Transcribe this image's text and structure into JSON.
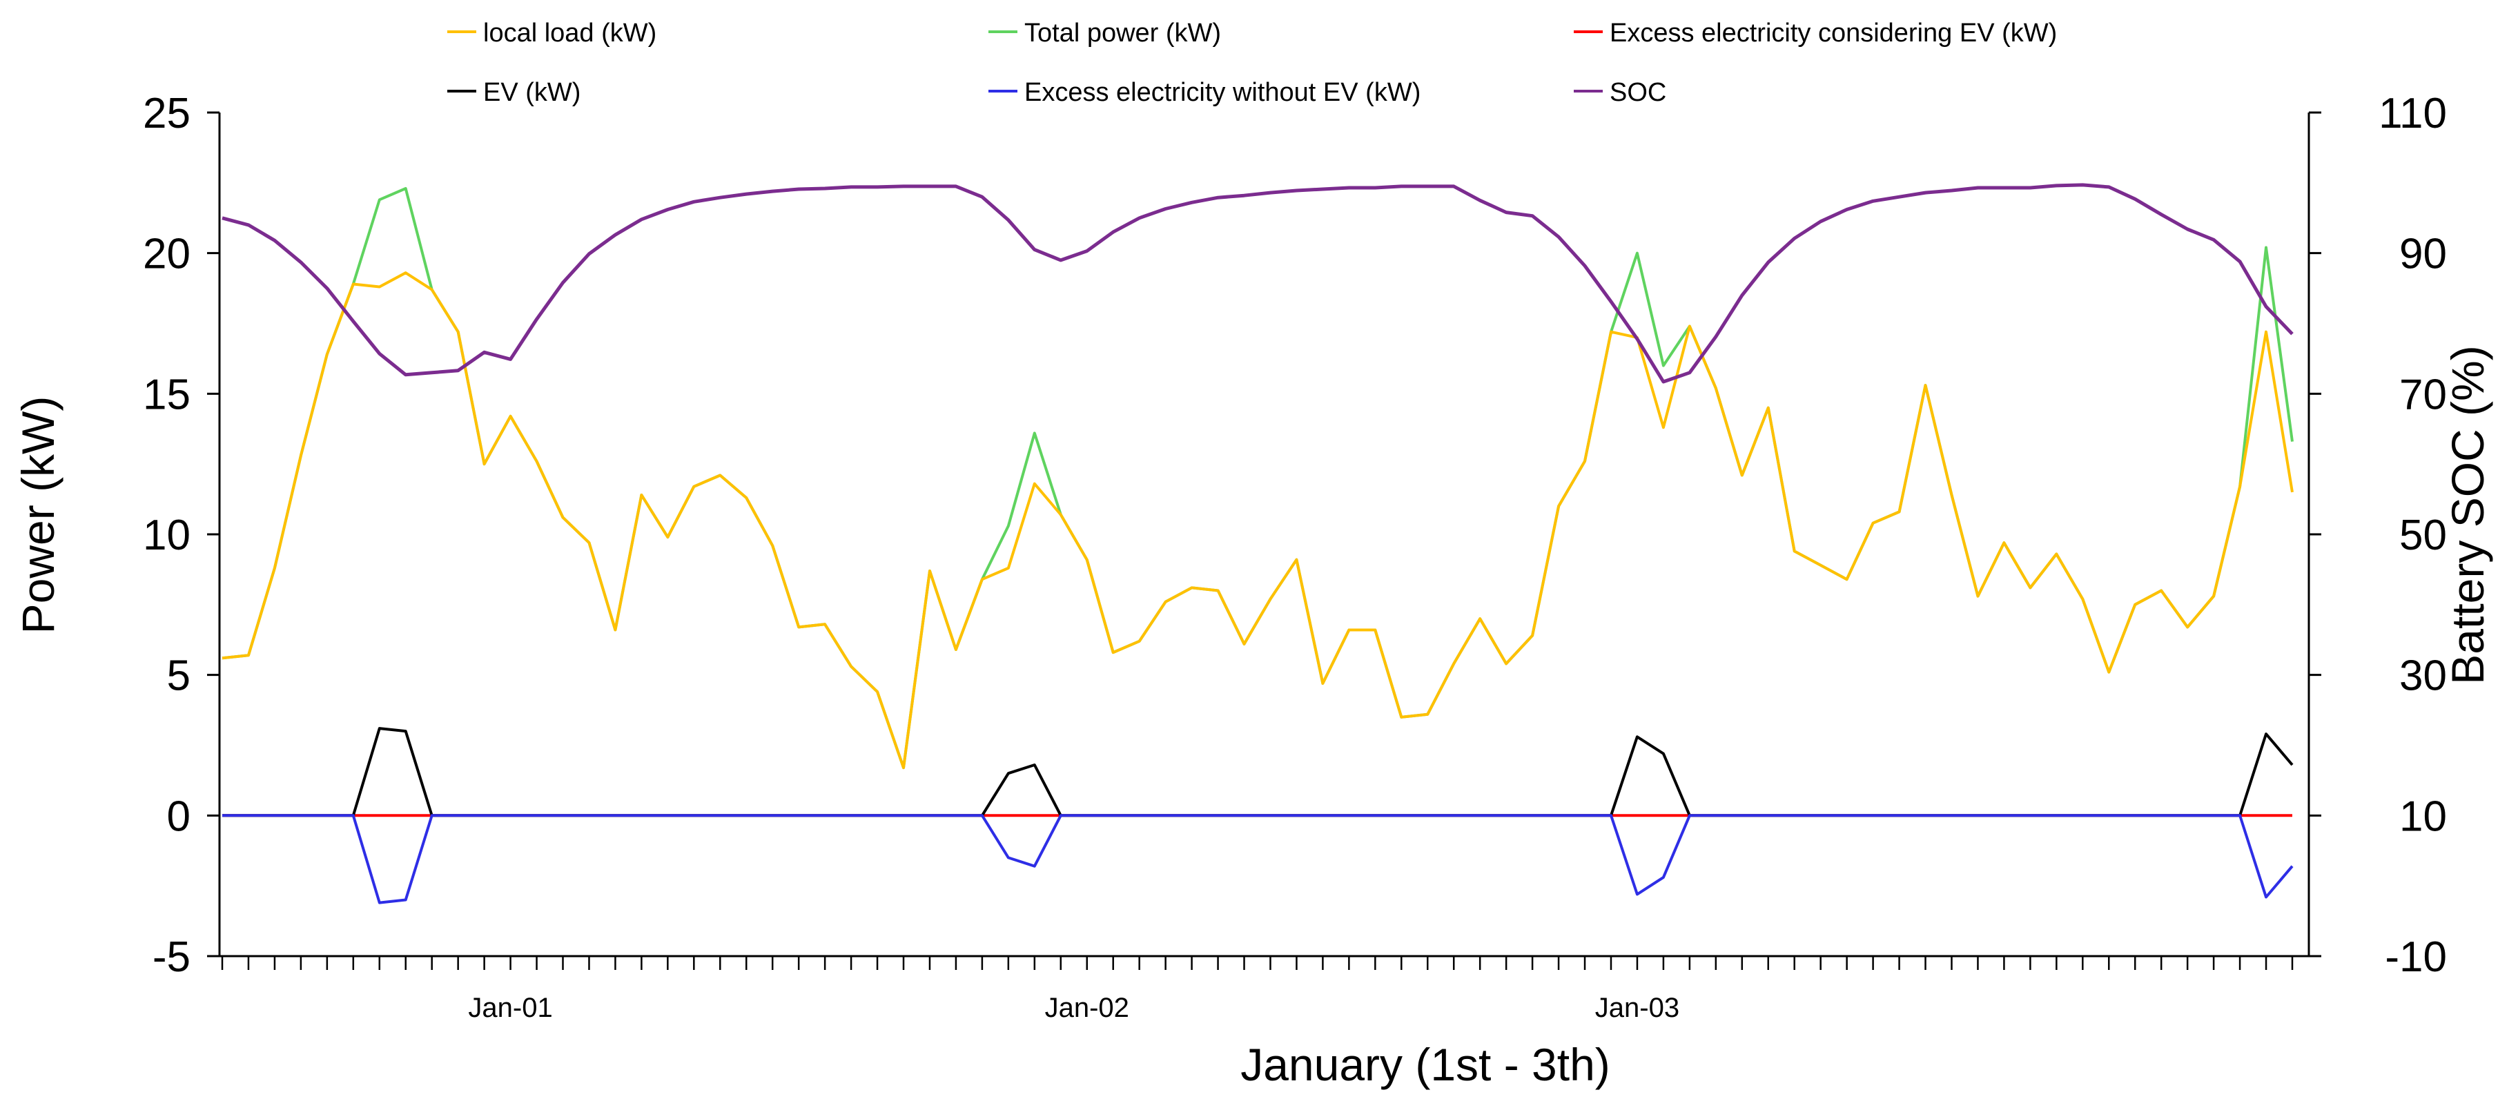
{
  "chart_data": {
    "type": "line",
    "title": "",
    "xlabel": "January (1st - 3th)",
    "ylabel": "Power (kW)",
    "y2label": "Battery  SOC (%)",
    "ylim": [
      -5,
      25
    ],
    "y2lim": [
      -10,
      110
    ],
    "yticks": [
      -5,
      0,
      5,
      10,
      15,
      20,
      25
    ],
    "y2ticks": [
      -10,
      10,
      30,
      50,
      70,
      90,
      110
    ],
    "x_tick_count": 80,
    "date_labels": [
      {
        "index": 11,
        "label": "Jan-01"
      },
      {
        "index": 33,
        "label": "Jan-02"
      },
      {
        "index": 54,
        "label": "Jan-03"
      }
    ],
    "legend_position": "top",
    "grid": false,
    "series": [
      {
        "name": "local load (kW)",
        "axis": "left",
        "color": "#FFC000",
        "values": [
          5.6,
          5.7,
          8.8,
          12.8,
          16.4,
          18.9,
          18.8,
          19.3,
          18.7,
          17.2,
          12.5,
          14.2,
          12.6,
          10.6,
          9.7,
          6.6,
          11.4,
          9.9,
          11.7,
          12.1,
          11.3,
          9.6,
          6.7,
          6.8,
          5.3,
          4.4,
          1.7,
          8.7,
          5.9,
          8.4,
          8.8,
          11.8,
          10.7,
          9.1,
          5.8,
          6.2,
          7.6,
          8.1,
          8.0,
          6.1,
          7.7,
          9.1,
          4.7,
          6.6,
          6.6,
          3.5,
          3.6,
          5.4,
          7.0,
          5.4,
          6.4,
          11.0,
          12.6,
          17.2,
          17.0,
          13.8,
          17.4,
          15.2,
          12.1,
          14.5,
          9.4,
          8.9,
          8.4,
          10.4,
          10.8,
          15.3,
          11.4,
          7.8,
          9.7,
          8.1,
          9.3,
          7.7,
          5.1,
          7.5,
          8.0,
          6.7,
          7.8,
          11.7,
          17.2,
          11.5
        ]
      },
      {
        "name": "Total power (kW)",
        "axis": "left",
        "color": "#5FD35F",
        "values": [
          5.6,
          5.7,
          8.8,
          12.8,
          16.4,
          18.9,
          21.9,
          22.3,
          18.7,
          17.2,
          12.5,
          14.2,
          12.6,
          10.6,
          9.7,
          6.6,
          11.4,
          9.9,
          11.7,
          12.1,
          11.3,
          9.6,
          6.7,
          6.8,
          5.3,
          4.4,
          1.7,
          8.7,
          5.9,
          8.4,
          10.3,
          13.6,
          10.7,
          9.1,
          5.8,
          6.2,
          7.6,
          8.1,
          8.0,
          6.1,
          7.7,
          9.1,
          4.7,
          6.6,
          6.6,
          3.5,
          3.6,
          5.4,
          7.0,
          5.4,
          6.4,
          11.0,
          12.6,
          17.2,
          20.0,
          16.0,
          17.4,
          15.2,
          12.1,
          14.5,
          9.4,
          8.9,
          8.4,
          10.4,
          10.8,
          15.3,
          11.4,
          7.8,
          9.7,
          8.1,
          9.3,
          7.7,
          5.1,
          7.5,
          8.0,
          6.7,
          7.8,
          11.7,
          20.2,
          13.3
        ]
      },
      {
        "name": "Excess electricity considering EV (kW)",
        "axis": "left",
        "color": "#FF0000",
        "values": [
          0,
          0,
          0,
          0,
          0,
          0,
          0,
          0,
          0,
          0,
          0,
          0,
          0,
          0,
          0,
          0,
          0,
          0,
          0,
          0,
          0,
          0,
          0,
          0,
          0,
          0,
          0,
          0,
          0,
          0,
          0,
          0,
          0,
          0,
          0,
          0,
          0,
          0,
          0,
          0,
          0,
          0,
          0,
          0,
          0,
          0,
          0,
          0,
          0,
          0,
          0,
          0,
          0,
          0,
          0,
          0,
          0,
          0,
          0,
          0,
          0,
          0,
          0,
          0,
          0,
          0,
          0,
          0,
          0,
          0,
          0,
          0,
          0,
          0,
          0,
          0,
          0,
          0,
          0,
          0
        ]
      },
      {
        "name": "EV (kW)",
        "axis": "left",
        "color": "#000000",
        "values": [
          0,
          0,
          0,
          0,
          0,
          0,
          3.1,
          3.0,
          0,
          0,
          0,
          0,
          0,
          0,
          0,
          0,
          0,
          0,
          0,
          0,
          0,
          0,
          0,
          0,
          0,
          0,
          0,
          0,
          0,
          0,
          1.5,
          1.8,
          0,
          0,
          0,
          0,
          0,
          0,
          0,
          0,
          0,
          0,
          0,
          0,
          0,
          0,
          0,
          0,
          0,
          0,
          0,
          0,
          0,
          0,
          2.8,
          2.2,
          0,
          0,
          0,
          0,
          0,
          0,
          0,
          0,
          0,
          0,
          0,
          0,
          0,
          0,
          0,
          0,
          0,
          0,
          0,
          0,
          0,
          0,
          2.9,
          1.8
        ]
      },
      {
        "name": "Excess electricity without EV (kW)",
        "axis": "left",
        "color": "#2E2EE6",
        "values": [
          0,
          0,
          0,
          0,
          0,
          0,
          -3.1,
          -3.0,
          0,
          0,
          0,
          0,
          0,
          0,
          0,
          0,
          0,
          0,
          0,
          0,
          0,
          0,
          0,
          0,
          0,
          0,
          0,
          0,
          0,
          0,
          -1.5,
          -1.8,
          0,
          0,
          0,
          0,
          0,
          0,
          0,
          0,
          0,
          0,
          0,
          0,
          0,
          0,
          0,
          0,
          0,
          0,
          0,
          0,
          0,
          0,
          -2.8,
          -2.2,
          0,
          0,
          0,
          0,
          0,
          0,
          0,
          0,
          0,
          0,
          0,
          0,
          0,
          0,
          0,
          0,
          0,
          0,
          0,
          0,
          0,
          0,
          -2.9,
          -1.8
        ]
      },
      {
        "name": "SOC",
        "axis": "right",
        "color": "#7B2C8F",
        "values": [
          95.0,
          94.0,
          91.8,
          88.7,
          85.0,
          80.3,
          75.7,
          72.7,
          73.0,
          73.3,
          75.9,
          74.9,
          80.6,
          85.8,
          89.9,
          92.6,
          94.8,
          96.2,
          97.3,
          97.9,
          98.4,
          98.8,
          99.1,
          99.2,
          99.4,
          99.4,
          99.5,
          99.5,
          99.5,
          98.0,
          94.7,
          90.5,
          89.0,
          90.3,
          93.0,
          95.0,
          96.3,
          97.2,
          97.9,
          98.2,
          98.6,
          98.9,
          99.1,
          99.3,
          99.3,
          99.5,
          99.5,
          99.5,
          97.5,
          95.8,
          95.3,
          92.3,
          88.2,
          83.1,
          77.8,
          71.7,
          73.0,
          78.1,
          84.0,
          88.7,
          92.1,
          94.5,
          96.2,
          97.4,
          98.0,
          98.6,
          98.9,
          99.3,
          99.3,
          99.3,
          99.6,
          99.7,
          99.4,
          97.7,
          95.5,
          93.4,
          91.9,
          88.8,
          82.4,
          78.5
        ]
      }
    ]
  }
}
